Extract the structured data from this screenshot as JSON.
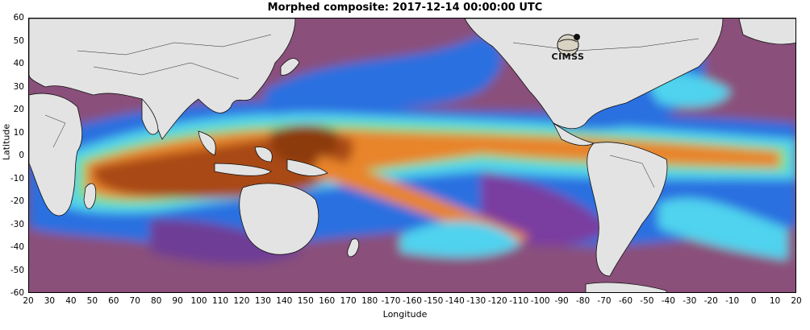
{
  "title": "Morphed composite: 2017-12-14 00:00:00 UTC",
  "xlabel": "Longitude",
  "ylabel": "Latitude",
  "x_ticks": [
    "20",
    "30",
    "40",
    "50",
    "60",
    "70",
    "80",
    "90",
    "100",
    "110",
    "120",
    "130",
    "140",
    "150",
    "160",
    "170",
    "180",
    "-170",
    "-160",
    "-150",
    "-140",
    "-130",
    "-120",
    "-110",
    "-100",
    "-90",
    "-80",
    "-70",
    "-60",
    "-50",
    "-40",
    "-30",
    "-20",
    "-10",
    "0",
    "10",
    "20"
  ],
  "y_ticks": [
    "60",
    "50",
    "40",
    "30",
    "20",
    "10",
    "0",
    "-10",
    "-20",
    "-30",
    "-40",
    "-50",
    "-60"
  ],
  "logo_text": "CIMSS",
  "colors": {
    "land": "#e3e3e3",
    "dry": "#8a4f7a",
    "low": "#7a3da0",
    "blue": "#2a6fe0",
    "cyan": "#4fd3ee",
    "green": "#7fe08a",
    "orange": "#e8842a",
    "dark": "#a84a14"
  },
  "map": {
    "projection": "equirectangular",
    "lon_range": [
      20,
      380
    ],
    "lat_range": [
      -60,
      60
    ],
    "field": "total precipitable water"
  }
}
